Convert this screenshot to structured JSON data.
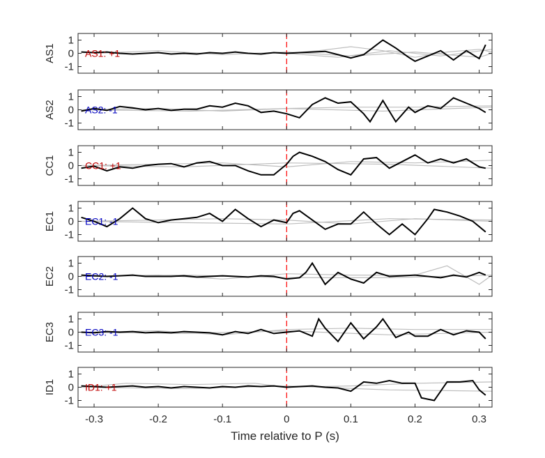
{
  "chart_data": {
    "type": "line",
    "xlabel": "Time relative to P (s)",
    "xlim": [
      -0.325,
      0.32
    ],
    "ylim": [
      -1.5,
      1.5
    ],
    "x_ticks": [
      -0.3,
      -0.2,
      -0.1,
      0,
      0.1,
      0.2,
      0.3
    ],
    "x_tick_labels": [
      "-0.3",
      "-0.2",
      "-0.1",
      "0",
      "0.1",
      "0.2",
      "0.3"
    ],
    "y_ticks": [
      -1,
      0,
      1
    ],
    "y_tick_labels": [
      "-1",
      "0",
      "1"
    ],
    "marker_x": 0,
    "grid": false,
    "colors": {
      "main_trace": "#000000",
      "background_traces": "#bdbdbd",
      "marker_line": "#ff0000",
      "positive_label": "#c00000",
      "negative_label": "#0000c0"
    },
    "panels": [
      {
        "ylabel": "AS1",
        "annotation": "AS1: +1",
        "polarity": 1,
        "main": {
          "x": [
            -0.32,
            -0.3,
            -0.28,
            -0.26,
            -0.24,
            -0.22,
            -0.2,
            -0.18,
            -0.16,
            -0.14,
            -0.12,
            -0.1,
            -0.08,
            -0.06,
            -0.04,
            -0.02,
            0,
            0.02,
            0.04,
            0.06,
            0.08,
            0.1,
            0.12,
            0.15,
            0.17,
            0.19,
            0.2,
            0.22,
            0.24,
            0.26,
            0.28,
            0.3,
            0.31
          ],
          "y": [
            0.1,
            0.05,
            0.1,
            0,
            -0.05,
            0,
            0.05,
            -0.05,
            0,
            -0.05,
            0.05,
            0,
            0.1,
            0,
            -0.05,
            0.05,
            0,
            0.05,
            0.1,
            0.15,
            -0.1,
            -0.35,
            -0.1,
            1.0,
            0.4,
            -0.3,
            -0.6,
            -0.2,
            0.2,
            -0.5,
            0.2,
            -0.4,
            0.65
          ]
        },
        "background": [
          {
            "x": [
              0.0,
              0.05,
              0.1,
              0.15,
              0.2,
              0.25,
              0.3,
              0.32
            ],
            "y": [
              0,
              0.2,
              0.5,
              0.2,
              -0.3,
              0.1,
              0.3,
              0.1
            ]
          },
          {
            "x": [
              -0.3,
              -0.2,
              -0.1,
              0,
              0.1,
              0.2,
              0.3,
              0.32
            ],
            "y": [
              0,
              0.2,
              -0.1,
              0.1,
              -0.2,
              0.1,
              -0.3,
              0
            ]
          },
          {
            "x": [
              0,
              0.08,
              0.16,
              0.24,
              0.32
            ],
            "y": [
              0,
              -0.3,
              0.2,
              -0.2,
              0.3
            ]
          }
        ]
      },
      {
        "ylabel": "AS2",
        "annotation": "AS2: -1",
        "polarity": -1,
        "main": {
          "x": [
            -0.32,
            -0.3,
            -0.28,
            -0.26,
            -0.24,
            -0.22,
            -0.2,
            -0.18,
            -0.16,
            -0.14,
            -0.12,
            -0.1,
            -0.08,
            -0.06,
            -0.04,
            -0.02,
            0,
            0.02,
            0.04,
            0.06,
            0.08,
            0.1,
            0.12,
            0.13,
            0.15,
            0.17,
            0.19,
            0.2,
            0.22,
            0.24,
            0.26,
            0.28,
            0.3,
            0.31
          ],
          "y": [
            -0.1,
            0.1,
            -0.05,
            0.25,
            0.15,
            0,
            0.1,
            -0.05,
            0.05,
            0.05,
            0.3,
            0.2,
            0.5,
            0.3,
            -0.2,
            -0.1,
            -0.3,
            -0.6,
            0.4,
            0.9,
            0.5,
            0.6,
            -0.3,
            -0.9,
            0.7,
            -0.9,
            0.2,
            -0.2,
            0.3,
            0.1,
            0.9,
            0.5,
            0.1,
            -0.2
          ]
        },
        "background": [
          {
            "x": [
              -0.32,
              -0.2,
              -0.1,
              0,
              0.1,
              0.2,
              0.32
            ],
            "y": [
              0,
              0.1,
              -0.1,
              0.1,
              0.2,
              0.2,
              0.3
            ]
          },
          {
            "x": [
              -0.32,
              -0.15,
              0,
              0.15,
              0.32
            ],
            "y": [
              0,
              -0.1,
              0.1,
              -0.1,
              0.2
            ]
          }
        ]
      },
      {
        "ylabel": "CC1",
        "annotation": "CC1: +1",
        "polarity": 1,
        "main": {
          "x": [
            -0.32,
            -0.3,
            -0.28,
            -0.26,
            -0.24,
            -0.22,
            -0.2,
            -0.18,
            -0.16,
            -0.14,
            -0.12,
            -0.1,
            -0.08,
            -0.06,
            -0.04,
            -0.02,
            0,
            0.01,
            0.02,
            0.04,
            0.06,
            0.08,
            0.1,
            0.12,
            0.14,
            0.16,
            0.18,
            0.2,
            0.22,
            0.24,
            0.26,
            0.28,
            0.3,
            0.31
          ],
          "y": [
            -0.2,
            -0.05,
            -0.4,
            -0.1,
            -0.2,
            0,
            0.1,
            0.15,
            -0.1,
            0.2,
            0.3,
            0,
            0,
            -0.4,
            -0.7,
            -0.7,
            0.1,
            0.7,
            1.0,
            0.7,
            0.3,
            -0.3,
            -0.7,
            0.5,
            0.6,
            -0.2,
            0.3,
            0.8,
            0.2,
            0.5,
            0.2,
            0.5,
            -0.1,
            -0.2
          ]
        },
        "background": [
          {
            "x": [
              -0.32,
              -0.2,
              -0.1,
              0,
              0.1,
              0.2,
              0.32
            ],
            "y": [
              0,
              0.1,
              0.2,
              -0.1,
              0.3,
              0.2,
              0.4
            ]
          },
          {
            "x": [
              -0.32,
              -0.16,
              0,
              0.16,
              0.32
            ],
            "y": [
              0,
              -0.1,
              0.2,
              0.1,
              -0.2
            ]
          }
        ]
      },
      {
        "ylabel": "EC1",
        "annotation": "EC1: -1",
        "polarity": -1,
        "main": {
          "x": [
            -0.32,
            -0.3,
            -0.28,
            -0.26,
            -0.24,
            -0.22,
            -0.2,
            -0.18,
            -0.16,
            -0.14,
            -0.12,
            -0.1,
            -0.08,
            -0.06,
            -0.04,
            -0.02,
            0,
            0.01,
            0.02,
            0.04,
            0.06,
            0.08,
            0.1,
            0.12,
            0.14,
            0.16,
            0.18,
            0.2,
            0.22,
            0.23,
            0.25,
            0.27,
            0.29,
            0.31
          ],
          "y": [
            0.3,
            0,
            -0.4,
            0.2,
            1.0,
            0.2,
            -0.1,
            0.1,
            0.2,
            0.3,
            0.6,
            0,
            0.9,
            0.2,
            -0.4,
            0.1,
            -0.1,
            0.6,
            0.8,
            0.1,
            -0.6,
            -0.2,
            -0.2,
            0.7,
            -0.2,
            -1.0,
            -0.2,
            -1.0,
            0.2,
            0.9,
            0.7,
            0.4,
            0,
            -0.8
          ]
        },
        "background": [
          {
            "x": [
              -0.32,
              -0.2,
              -0.1,
              0,
              0.1,
              0.2,
              0.32
            ],
            "y": [
              0,
              0.1,
              0.2,
              0.1,
              -0.2,
              0.2,
              0
            ]
          },
          {
            "x": [
              -0.32,
              -0.16,
              0,
              0.16,
              0.32
            ],
            "y": [
              0,
              -0.1,
              -0.2,
              0.2,
              0.1
            ]
          }
        ]
      },
      {
        "ylabel": "EC2",
        "annotation": "EC2: -1",
        "polarity": -1,
        "main": {
          "x": [
            -0.32,
            -0.3,
            -0.28,
            -0.26,
            -0.24,
            -0.22,
            -0.2,
            -0.18,
            -0.16,
            -0.14,
            -0.12,
            -0.1,
            -0.08,
            -0.06,
            -0.04,
            -0.02,
            0,
            0.02,
            0.03,
            0.04,
            0.06,
            0.08,
            0.1,
            0.12,
            0.14,
            0.16,
            0.18,
            0.2,
            0.22,
            0.24,
            0.26,
            0.28,
            0.3,
            0.31
          ],
          "y": [
            0.1,
            0.05,
            0,
            0.05,
            0.1,
            0,
            0,
            0,
            0.05,
            -0.05,
            0,
            0.05,
            0,
            -0.05,
            0.05,
            0,
            -0.2,
            -0.1,
            0.3,
            1.0,
            -0.6,
            0.3,
            -0.2,
            -0.5,
            0.3,
            0,
            0.05,
            0.1,
            0,
            -0.1,
            0.1,
            -0.05,
            0.3,
            0.1
          ]
        },
        "background": [
          {
            "x": [
              -0.32,
              -0.2,
              -0.1,
              0,
              0.1,
              0.2,
              0.25,
              0.3,
              0.32
            ],
            "y": [
              0,
              0.1,
              -0.2,
              0.2,
              0.1,
              0.1,
              0.8,
              -0.6,
              0.1
            ]
          },
          {
            "x": [
              -0.32,
              -0.16,
              0,
              0.16,
              0.32
            ],
            "y": [
              0,
              0.1,
              -0.1,
              -0.1,
              0.1
            ]
          }
        ]
      },
      {
        "ylabel": "EC3",
        "annotation": "EC3: -1",
        "polarity": -1,
        "main": {
          "x": [
            -0.32,
            -0.3,
            -0.28,
            -0.26,
            -0.24,
            -0.22,
            -0.2,
            -0.18,
            -0.16,
            -0.14,
            -0.12,
            -0.1,
            -0.08,
            -0.06,
            -0.04,
            -0.02,
            0,
            0.02,
            0.04,
            0.05,
            0.06,
            0.08,
            0.1,
            0.12,
            0.14,
            0.15,
            0.17,
            0.19,
            0.2,
            0.22,
            0.24,
            0.26,
            0.28,
            0.3,
            0.31
          ],
          "y": [
            0,
            -0.05,
            0.05,
            0,
            0.05,
            -0.05,
            0,
            -0.05,
            0.05,
            0,
            -0.05,
            -0.2,
            0.05,
            -0.1,
            0.2,
            -0.1,
            0,
            0.1,
            -0.3,
            1.0,
            0.3,
            -0.7,
            0.7,
            -0.5,
            0.4,
            1.0,
            -0.4,
            0,
            -0.3,
            -0.3,
            0.2,
            -0.2,
            0.1,
            0,
            -0.5
          ]
        },
        "background": [
          {
            "x": [
              -0.32,
              -0.2,
              -0.1,
              0,
              0.1,
              0.2,
              0.32
            ],
            "y": [
              0,
              0.1,
              -0.2,
              0.2,
              0.3,
              0.2,
              0.2
            ]
          },
          {
            "x": [
              -0.32,
              -0.16,
              0,
              0.16,
              0.32
            ],
            "y": [
              0,
              -0.1,
              0.1,
              -0.2,
              0
            ]
          }
        ]
      },
      {
        "ylabel": "ID1",
        "annotation": "ID1: +1",
        "polarity": 1,
        "main": {
          "x": [
            -0.32,
            -0.3,
            -0.28,
            -0.26,
            -0.24,
            -0.22,
            -0.2,
            -0.18,
            -0.16,
            -0.14,
            -0.12,
            -0.1,
            -0.08,
            -0.06,
            -0.04,
            -0.02,
            0,
            0.02,
            0.04,
            0.06,
            0.08,
            0.1,
            0.12,
            0.14,
            0.16,
            0.18,
            0.2,
            0.21,
            0.23,
            0.25,
            0.27,
            0.29,
            0.3,
            0.31
          ],
          "y": [
            0.1,
            0.05,
            0,
            0.05,
            0.1,
            0,
            0.05,
            -0.05,
            0.05,
            0,
            -0.05,
            0.05,
            0,
            0.1,
            0.05,
            0.1,
            0,
            0.05,
            0.1,
            0,
            -0.05,
            -0.3,
            0.4,
            0.3,
            0.5,
            0.3,
            0.3,
            -0.8,
            -1.0,
            0.4,
            0.4,
            0.5,
            -0.2,
            -0.6
          ]
        },
        "background": [
          {
            "x": [
              -0.32,
              -0.25,
              -0.15,
              -0.05,
              0,
              0.1,
              0.2,
              0.32
            ],
            "y": [
              0,
              0.3,
              0.2,
              0.3,
              0,
              0.1,
              0.3,
              0.4
            ]
          },
          {
            "x": [
              -0.32,
              -0.16,
              0,
              0.16,
              0.32
            ],
            "y": [
              0,
              -0.1,
              0.1,
              -0.2,
              -0.3
            ]
          }
        ]
      }
    ]
  }
}
